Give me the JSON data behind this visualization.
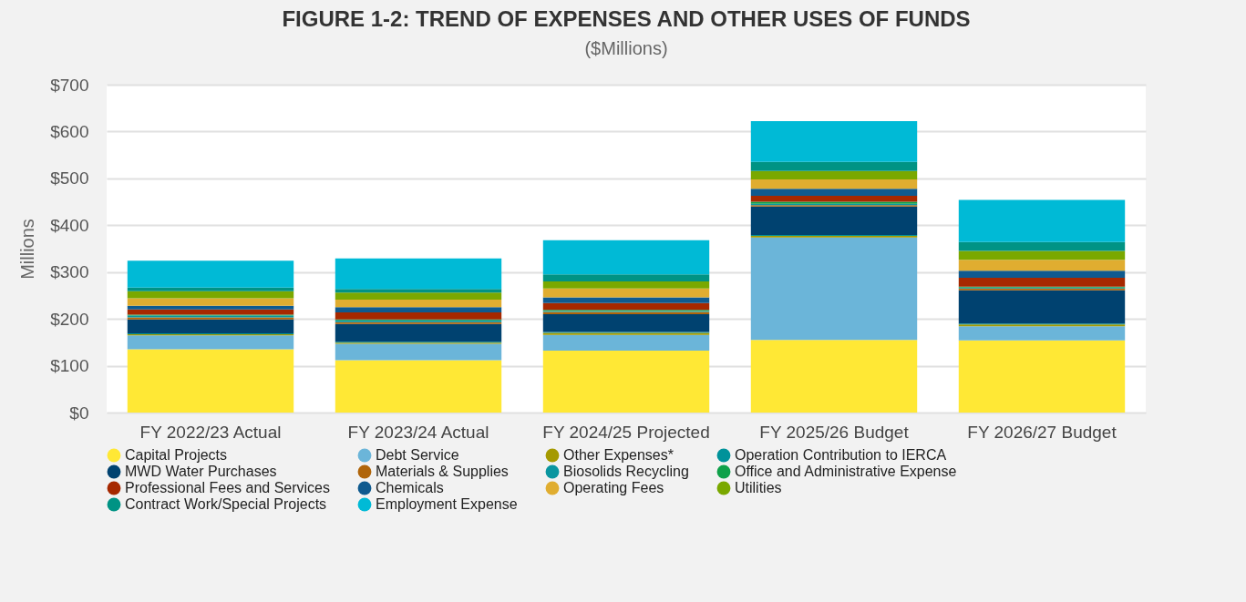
{
  "chart_data": {
    "type": "bar",
    "title": "FIGURE 1-2: TREND OF EXPENSES AND OTHER USES OF FUNDS",
    "subtitle": "($Millions)",
    "ylabel": "Millions",
    "stacked": true,
    "grid": "y",
    "legend": "bottom",
    "categories": [
      "FY 2022/23 Actual",
      "FY 2023/24 Actual",
      "FY 2024/25 Projected",
      "FY 2025/26 Budget",
      "FY 2026/27 Budget"
    ],
    "ylim": [
      0,
      700
    ],
    "yticks": [
      {
        "value": 0,
        "label": "$0"
      },
      {
        "value": 100,
        "label": "$100"
      },
      {
        "value": 200,
        "label": "$200"
      },
      {
        "value": 300,
        "label": "$300"
      },
      {
        "value": 400,
        "label": "$400"
      },
      {
        "value": 500,
        "label": "$500"
      },
      {
        "value": 600,
        "label": "$600"
      },
      {
        "value": 700,
        "label": "$700"
      }
    ],
    "series": [
      {
        "name": "Capital Projects",
        "color": "#ffe835",
        "values": [
          135,
          112,
          132,
          155,
          154
        ]
      },
      {
        "name": "Debt Service",
        "color": "#6bb5d9",
        "values": [
          30,
          35,
          34,
          219,
          30
        ]
      },
      {
        "name": "Other Expenses*",
        "color": "#a59a00",
        "values": [
          2,
          2,
          4,
          3,
          4
        ]
      },
      {
        "name": "Operation Contribution to IERCA",
        "color": "#00929a",
        "values": [
          2,
          2,
          2,
          2,
          2
        ]
      },
      {
        "name": "MWD Water Purchases",
        "color": "#004270",
        "values": [
          30,
          38,
          38,
          61,
          71
        ]
      },
      {
        "name": "Materials & Supplies",
        "color": "#b0650a",
        "values": [
          4,
          4,
          5,
          3,
          4
        ]
      },
      {
        "name": "Biosolids Recycling",
        "color": "#0a96a0",
        "values": [
          4,
          4,
          2,
          3,
          2
        ]
      },
      {
        "name": "Office and Administrative Expense",
        "color": "#0fa14a",
        "values": [
          2,
          2,
          2,
          4,
          2
        ]
      },
      {
        "name": "Professional Fees and Services",
        "color": "#a62800",
        "values": [
          11,
          15,
          15,
          13,
          19
        ]
      },
      {
        "name": "Chemicals",
        "color": "#0f5a8f",
        "values": [
          8,
          11,
          12,
          15,
          15
        ]
      },
      {
        "name": "Operating Fees",
        "color": "#e0ad30",
        "values": [
          16,
          16,
          19,
          20,
          23
        ]
      },
      {
        "name": "Utilities",
        "color": "#7aa800",
        "values": [
          15,
          15,
          15,
          18,
          19
        ]
      },
      {
        "name": "Contract Work/Special Projects",
        "color": "#009384",
        "values": [
          8,
          8,
          15,
          19,
          19
        ]
      },
      {
        "name": "Employment Expense",
        "color": "#00bad6",
        "values": [
          57,
          65,
          73,
          87,
          90
        ]
      }
    ]
  }
}
